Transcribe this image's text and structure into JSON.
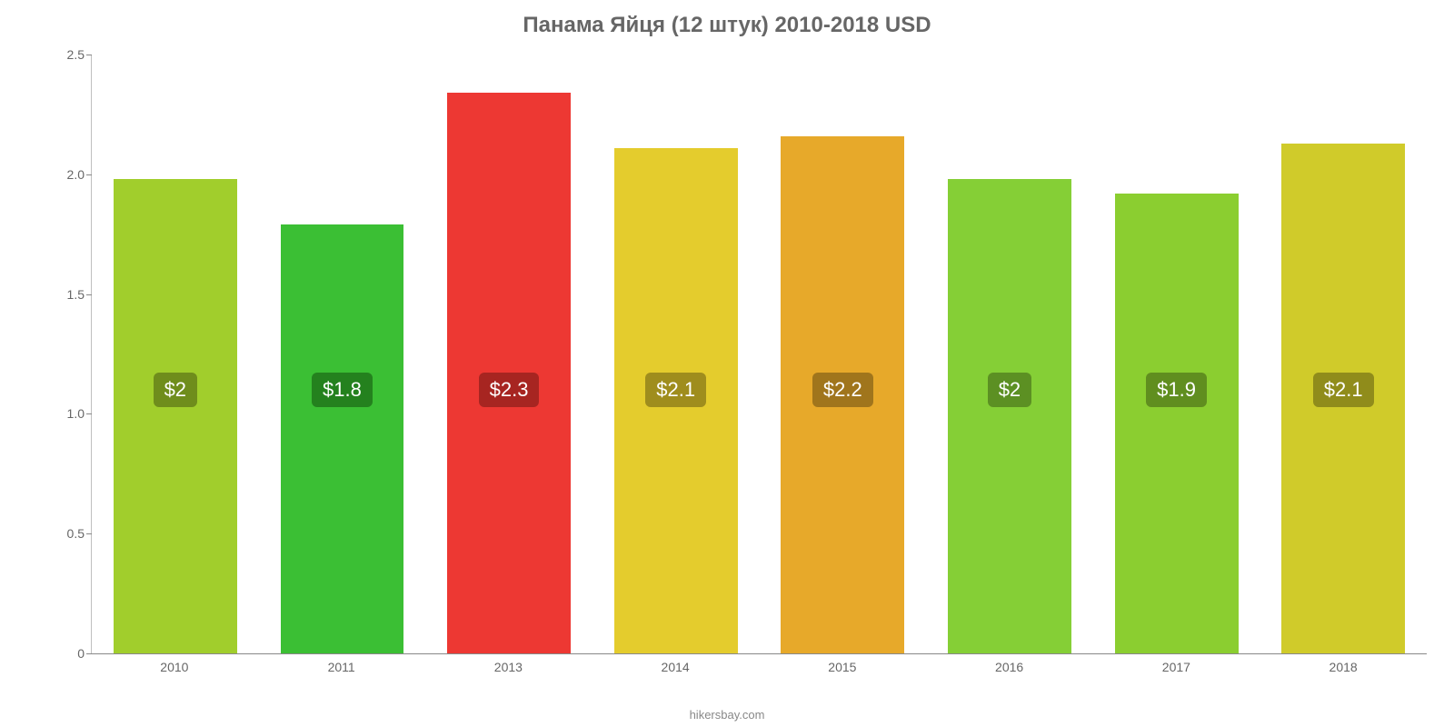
{
  "chart": {
    "type": "bar",
    "title": "Панама Яйця (12 штук) 2010-2018 USD",
    "title_color": "#666666",
    "title_fontsize": 24,
    "background_color": "#ffffff",
    "axis_color": "#bfbfbf",
    "tick_label_color": "#666666",
    "tick_label_fontsize": 14,
    "ylim": [
      0,
      2.5
    ],
    "ytick_step": 0.5,
    "yticks": [
      "0",
      "0.5",
      "1.0",
      "1.5",
      "2.0",
      "2.5"
    ],
    "bar_width": 0.74,
    "value_label_fontsize": 22,
    "value_label_text_color": "#ffffff",
    "value_label_vertical_center": 1.1,
    "categories": [
      "2010",
      "2011",
      "2013",
      "2014",
      "2015",
      "2016",
      "2017",
      "2018"
    ],
    "values": [
      1.98,
      1.79,
      2.34,
      2.11,
      2.16,
      1.98,
      1.92,
      2.13
    ],
    "value_labels": [
      "$2",
      "$1.8",
      "$2.3",
      "$2.1",
      "$2.2",
      "$2",
      "$1.9",
      "$2.1"
    ],
    "bar_colors": [
      "#a1ce2c",
      "#3bbf34",
      "#ed3833",
      "#e4cc2d",
      "#e7a92a",
      "#85cf36",
      "#8bce30",
      "#d0cb2a"
    ],
    "value_box_colors": [
      "#6f8d1c",
      "#24811e",
      "#a72521",
      "#9f8d1d",
      "#a0751c",
      "#5c9023",
      "#608e1f",
      "#908c1b"
    ],
    "footer_text": "hikersbay.com",
    "footer_color": "#888888",
    "xlabel_color": "#666666"
  }
}
